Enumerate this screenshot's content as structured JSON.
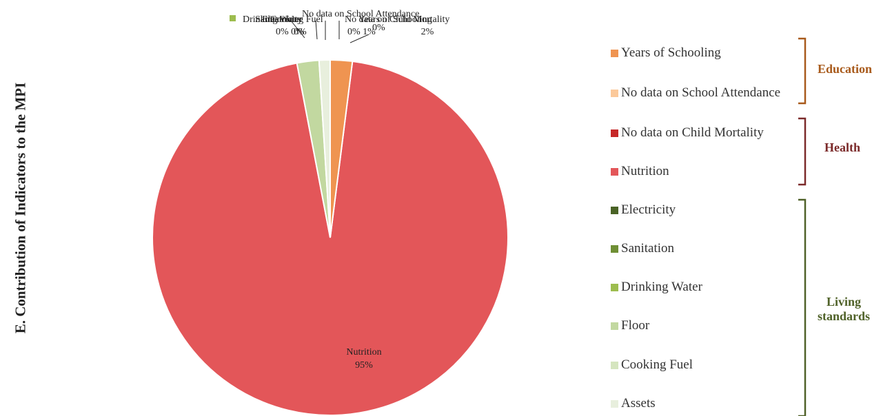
{
  "page_title": "E. Contribution of Indicators to the MPI",
  "chart_data": {
    "type": "pie",
    "title": "",
    "slices": [
      {
        "label": "Years of Schooling",
        "value": 2,
        "value_label": "2%",
        "color": "#ef9451"
      },
      {
        "label": "No data on School Attendance",
        "value": 0,
        "value_label": "0%",
        "color": "#fbc99a"
      },
      {
        "label": "No data on Child Mortality",
        "value": 0,
        "value_label": "0%",
        "color": "#c62828"
      },
      {
        "label": "Nutrition",
        "value": 95,
        "value_label": "95%",
        "color": "#e35659"
      },
      {
        "label": "Electricity",
        "value": 0,
        "value_label": "0%",
        "color": "#4a6326"
      },
      {
        "label": "Sanitation",
        "value": 0,
        "value_label": "0%",
        "color": "#6f8f35"
      },
      {
        "label": "Drinking Water",
        "value": 0,
        "value_label": "0%",
        "color": "#9dbd4f"
      },
      {
        "label": "Floor",
        "value": 2,
        "value_label": "2%",
        "color": "#c2d8a0"
      },
      {
        "label": "Cooking Fuel",
        "value": 0,
        "value_label": "0%",
        "color": "#d5e5bf"
      },
      {
        "label": "Assets",
        "value": 1,
        "value_label": "1%",
        "color": "#e8efdd"
      }
    ],
    "legend_position": "right"
  },
  "groups": [
    {
      "label_lines": [
        "Education"
      ],
      "color": "#a85a1b"
    },
    {
      "label_lines": [
        "Health"
      ],
      "color": "#7b2a2a"
    },
    {
      "label_lines": [
        "Living",
        "standards"
      ],
      "color": "#4f6128"
    }
  ],
  "overlap_labels": {
    "top_left_legend": "Drinking Water",
    "top_center": "No data on School Attendance",
    "cluster": "0% 0%",
    "cluster2": "0%",
    "right_cluster": "0% 1%",
    "right_cluster2": "0%"
  }
}
